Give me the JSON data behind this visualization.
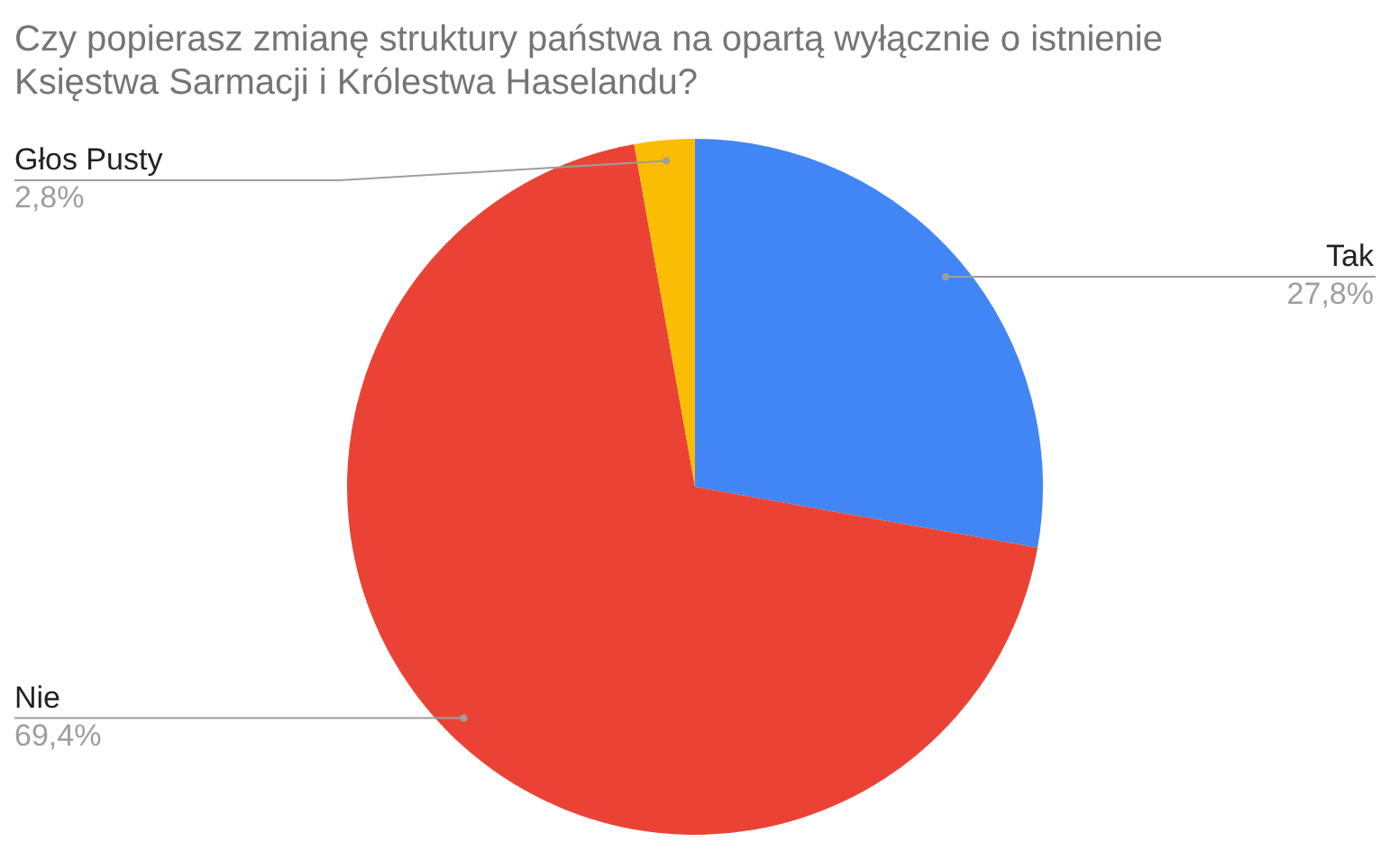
{
  "chart_data": {
    "type": "pie",
    "title": "Czy popierasz zmianę struktury państwa na opartą wyłącznie o istnienie Księstwa Sarmacji i Królestwa Haselandu?",
    "categories": [
      "Tak",
      "Nie",
      "Głos Pusty"
    ],
    "values": [
      27.8,
      69.4,
      2.8
    ],
    "colors": [
      "#4285f4",
      "#ea4335",
      "#fbbc04"
    ],
    "value_labels": [
      "27,8%",
      "69,4%",
      "2,8%"
    ]
  }
}
